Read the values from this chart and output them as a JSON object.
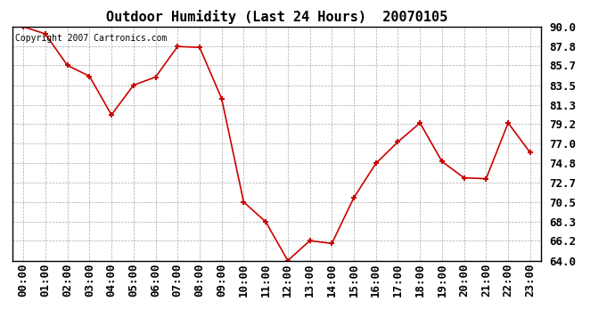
{
  "title": "Outdoor Humidity (Last 24 Hours)  20070105",
  "copyright": "Copyright 2007 Cartronics.com",
  "x_labels": [
    "00:00",
    "01:00",
    "02:00",
    "03:00",
    "04:00",
    "05:00",
    "06:00",
    "07:00",
    "08:00",
    "09:00",
    "10:00",
    "11:00",
    "12:00",
    "13:00",
    "14:00",
    "15:00",
    "16:00",
    "17:00",
    "18:00",
    "19:00",
    "20:00",
    "21:00",
    "22:00",
    "23:00"
  ],
  "y_values": [
    90.0,
    89.2,
    85.7,
    84.5,
    80.2,
    83.5,
    84.4,
    87.8,
    87.7,
    82.0,
    70.5,
    68.3,
    64.0,
    66.2,
    65.9,
    71.0,
    74.8,
    77.2,
    79.3,
    75.0,
    73.2,
    73.1,
    79.3,
    76.0
  ],
  "line_color": "#cc0000",
  "marker_color": "#cc0000",
  "background_color": "#ffffff",
  "grid_color": "#aaaaaa",
  "ylim": [
    64.0,
    90.0
  ],
  "yticks": [
    64.0,
    66.2,
    68.3,
    70.5,
    72.7,
    74.8,
    77.0,
    79.2,
    81.3,
    83.5,
    85.7,
    87.8,
    90.0
  ],
  "title_fontsize": 11,
  "tick_fontsize": 9,
  "copyright_fontsize": 7
}
